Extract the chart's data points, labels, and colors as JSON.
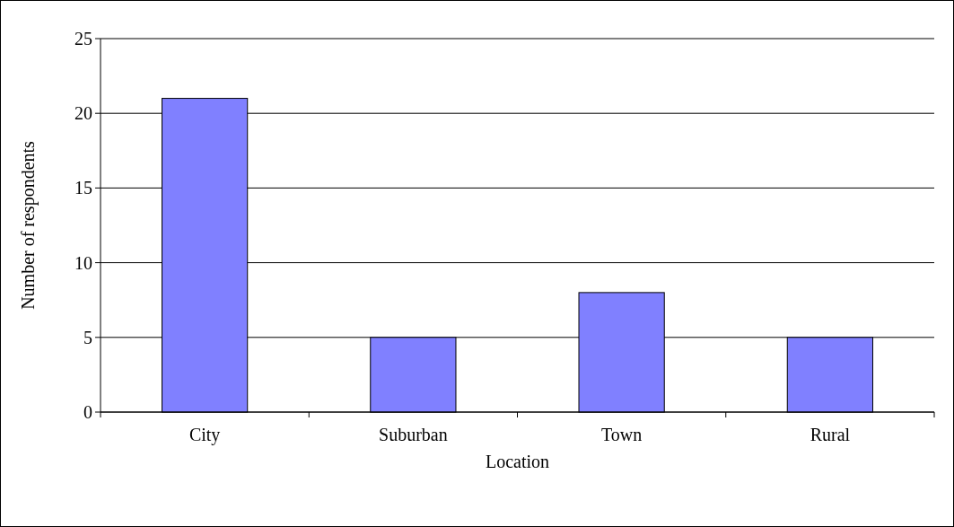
{
  "chart_data": {
    "type": "bar",
    "xlabel": "Location",
    "ylabel": "Number of respondents",
    "categories": [
      "City",
      "Suburban",
      "Town",
      "Rural"
    ],
    "values": [
      21,
      5,
      8,
      5
    ],
    "color": "#8080ff",
    "ylim": [
      0,
      25
    ],
    "yticks": [
      0,
      5,
      10,
      15,
      20,
      25
    ],
    "grid": "y"
  }
}
